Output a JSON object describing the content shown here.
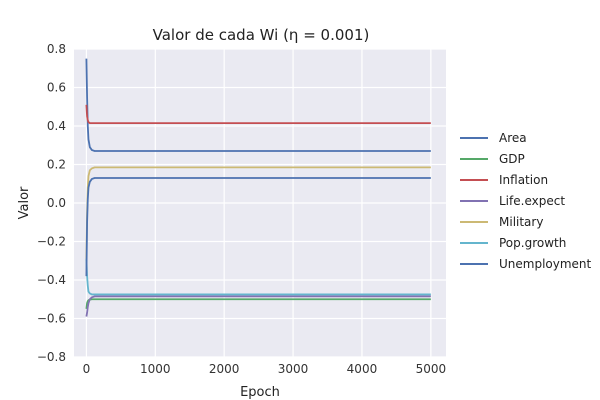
{
  "chart_data": {
    "type": "line",
    "title": "Valor de cada Wi (η = 0.001)",
    "xlabel": "Epoch",
    "ylabel": "Valor",
    "xlim": [
      -180,
      5220
    ],
    "ylim": [
      -0.8,
      0.8
    ],
    "xticks": [
      0,
      1000,
      2000,
      3000,
      4000,
      5000
    ],
    "yticks": [
      -0.8,
      -0.6,
      -0.4,
      -0.2,
      0.0,
      0.2,
      0.4,
      0.6,
      0.8
    ],
    "ytick_labels": [
      "−0.8",
      "−0.6",
      "−0.4",
      "−0.2",
      "0.0",
      "0.2",
      "0.4",
      "0.6",
      "0.8"
    ],
    "grid": true,
    "legend_position": "right",
    "series": [
      {
        "name": "Area",
        "color": "#4C72B0",
        "x": [
          0,
          10,
          20,
          30,
          50,
          80,
          120,
          200,
          5000
        ],
        "y": [
          0.75,
          0.55,
          0.4,
          0.33,
          0.29,
          0.275,
          0.27,
          0.27,
          0.27
        ]
      },
      {
        "name": "GDP",
        "color": "#55A868",
        "x": [
          0,
          10,
          20,
          30,
          50,
          80,
          120,
          200,
          5000
        ],
        "y": [
          -0.55,
          -0.52,
          -0.51,
          -0.505,
          -0.502,
          -0.5,
          -0.5,
          -0.5,
          -0.5
        ]
      },
      {
        "name": "Inflation",
        "color": "#C44E52",
        "x": [
          0,
          10,
          20,
          30,
          50,
          80,
          120,
          200,
          5000
        ],
        "y": [
          0.51,
          0.45,
          0.43,
          0.42,
          0.415,
          0.415,
          0.415,
          0.415,
          0.415
        ]
      },
      {
        "name": "Life.expect",
        "color": "#8172B2",
        "x": [
          0,
          10,
          20,
          30,
          50,
          80,
          120,
          200,
          5000
        ],
        "y": [
          -0.59,
          -0.57,
          -0.54,
          -0.52,
          -0.5,
          -0.49,
          -0.485,
          -0.485,
          -0.485
        ]
      },
      {
        "name": "Military",
        "color": "#CCB974",
        "x": [
          0,
          10,
          20,
          30,
          50,
          80,
          120,
          200,
          5000
        ],
        "y": [
          -0.3,
          -0.05,
          0.08,
          0.14,
          0.17,
          0.18,
          0.185,
          0.185,
          0.185
        ]
      },
      {
        "name": "Pop.growth",
        "color": "#64B5CD",
        "x": [
          0,
          10,
          20,
          30,
          50,
          80,
          120,
          200,
          5000
        ],
        "y": [
          -0.29,
          -0.38,
          -0.43,
          -0.46,
          -0.47,
          -0.475,
          -0.475,
          -0.475,
          -0.475
        ]
      },
      {
        "name": "Unemployment",
        "color": "#4C72B0",
        "x": [
          0,
          10,
          20,
          30,
          50,
          80,
          120,
          200,
          5000
        ],
        "y": [
          -0.38,
          -0.1,
          0.02,
          0.08,
          0.11,
          0.125,
          0.13,
          0.13,
          0.13
        ]
      }
    ]
  }
}
